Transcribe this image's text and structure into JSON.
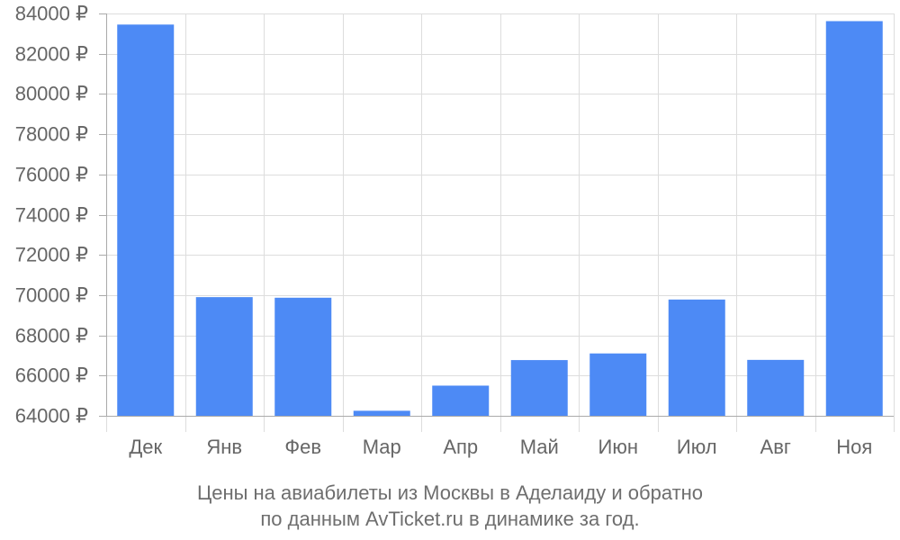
{
  "chart_data": {
    "type": "bar",
    "categories": [
      "Дек",
      "Янв",
      "Фев",
      "Мар",
      "Апр",
      "Май",
      "Июн",
      "Июл",
      "Авг",
      "Ноя"
    ],
    "values": [
      83450,
      69900,
      69870,
      64250,
      65500,
      66770,
      67100,
      69780,
      66780,
      83620
    ],
    "ylim": [
      64000,
      84000
    ],
    "yticks": [
      64000,
      66000,
      68000,
      70000,
      72000,
      74000,
      76000,
      78000,
      80000,
      82000,
      84000
    ],
    "ytick_suffix": " ₽",
    "grid": true,
    "bar_color": "#4d8af5",
    "grid_color": "#dddddd",
    "axis_color": "#aaaaaa",
    "label_color": "#666666"
  },
  "caption": {
    "line1": "Цены на авиабилеты из Москвы в Аделаиду и обратно",
    "line2": "по данным AvTicket.ru в динамике за год."
  }
}
